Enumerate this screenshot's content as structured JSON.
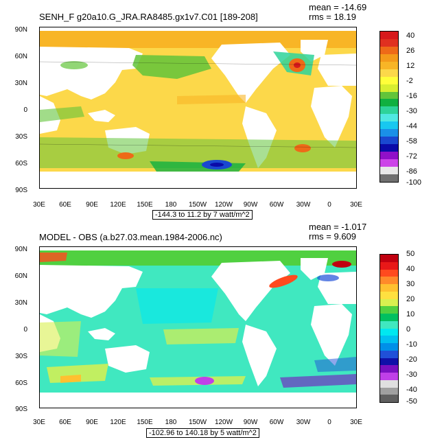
{
  "panels": [
    {
      "title": "SENH_F g20a10.G_JRA.RA8485.gx1v7.C01 [189-208]",
      "mean": "mean = -14.69",
      "rms": "rms = 18.19",
      "caption": "-144.3 to 11.2 by 7 watt/m^2",
      "colorbar_labels": [
        "40",
        "26",
        "12",
        "-2",
        "-16",
        "-30",
        "-44",
        "-58",
        "-72",
        "-86",
        "-100"
      ],
      "colorbar_colors": [
        "#d7191c",
        "#e03020",
        "#ee6a18",
        "#f49a1a",
        "#f8b526",
        "#fcd84a",
        "#ffff3a",
        "#d8ef30",
        "#62c43a",
        "#10b040",
        "#2ed39a",
        "#50e8e2",
        "#18c8f0",
        "#1a90e8",
        "#1a48d0",
        "#0a0aa8",
        "#9010c8",
        "#cc44e8",
        "#e8e8e8",
        "#707070"
      ]
    },
    {
      "title": "MODEL - OBS (a.b27.03.mean.1984-2006.nc)",
      "mean": "mean = -1.017",
      "rms": "rms = 9.609",
      "caption": "-102.96 to 140.18 by 5 watt/m^2",
      "colorbar_labels": [
        "50",
        "40",
        "30",
        "20",
        "10",
        "0",
        "-10",
        "-20",
        "-30",
        "-40",
        "-50"
      ],
      "colorbar_colors": [
        "#c00010",
        "#e81818",
        "#ff4a1e",
        "#ff8a2a",
        "#ffc030",
        "#ffe040",
        "#d8f050",
        "#50d040",
        "#00c060",
        "#40e8c0",
        "#00e8f0",
        "#00c0f0",
        "#0090e8",
        "#2050d8",
        "#1010a8",
        "#7a10c0",
        "#c040e8",
        "#e0e0e0",
        "#a0a0a0",
        "#606060"
      ]
    }
  ],
  "lat_labels": [
    "90N",
    "60N",
    "30N",
    "0",
    "30S",
    "60S",
    "90S"
  ],
  "lon_labels": [
    "30E",
    "60E",
    "90E",
    "120E",
    "150E",
    "180",
    "150W",
    "120W",
    "90W",
    "60W",
    "30W",
    "0",
    "30E"
  ]
}
